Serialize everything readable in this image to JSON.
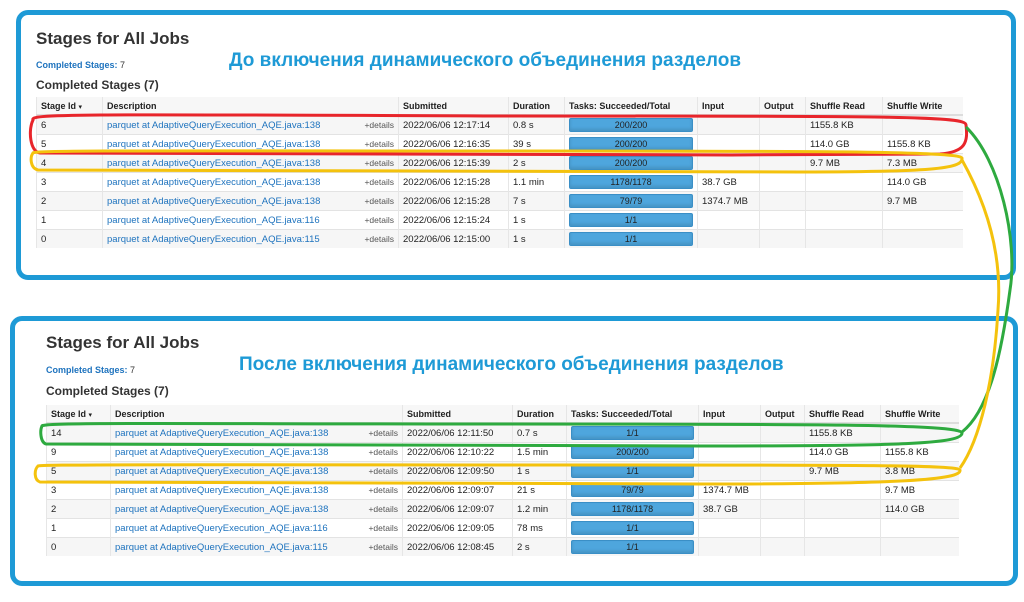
{
  "before": {
    "title": "Stages for All Jobs",
    "completed_link_label": "Completed Stages:",
    "completed_link_count": "7",
    "completed_header": "Completed Stages (7)",
    "caption": "До включения динамического объединения разделов",
    "columns": [
      "Stage Id",
      "Description",
      "Submitted",
      "Duration",
      "Tasks: Succeeded/Total",
      "Input",
      "Output",
      "Shuffle Read",
      "Shuffle Write"
    ],
    "sort_indicator": "▾",
    "rows": [
      {
        "id": "6",
        "desc": "parquet at AdaptiveQueryExecution_AQE.java:138",
        "details": "+details",
        "submitted": "2022/06/06 12:17:14",
        "duration": "0.8 s",
        "tasks": "200/200",
        "input": "",
        "output": "",
        "shuffle_read": "1155.8 KB",
        "shuffle_write": ""
      },
      {
        "id": "5",
        "desc": "parquet at AdaptiveQueryExecution_AQE.java:138",
        "details": "+details",
        "submitted": "2022/06/06 12:16:35",
        "duration": "39 s",
        "tasks": "200/200",
        "input": "",
        "output": "",
        "shuffle_read": "114.0 GB",
        "shuffle_write": "1155.8 KB"
      },
      {
        "id": "4",
        "desc": "parquet at AdaptiveQueryExecution_AQE.java:138",
        "details": "+details",
        "submitted": "2022/06/06 12:15:39",
        "duration": "2 s",
        "tasks": "200/200",
        "input": "",
        "output": "",
        "shuffle_read": "9.7 MB",
        "shuffle_write": "7.3 MB"
      },
      {
        "id": "3",
        "desc": "parquet at AdaptiveQueryExecution_AQE.java:138",
        "details": "+details",
        "submitted": "2022/06/06 12:15:28",
        "duration": "1.1 min",
        "tasks": "1178/1178",
        "input": "38.7 GB",
        "output": "",
        "shuffle_read": "",
        "shuffle_write": "114.0 GB"
      },
      {
        "id": "2",
        "desc": "parquet at AdaptiveQueryExecution_AQE.java:138",
        "details": "+details",
        "submitted": "2022/06/06 12:15:28",
        "duration": "7 s",
        "tasks": "79/79",
        "input": "1374.7 MB",
        "output": "",
        "shuffle_read": "",
        "shuffle_write": "9.7 MB"
      },
      {
        "id": "1",
        "desc": "parquet at AdaptiveQueryExecution_AQE.java:116",
        "details": "+details",
        "submitted": "2022/06/06 12:15:24",
        "duration": "1 s",
        "tasks": "1/1",
        "input": "",
        "output": "",
        "shuffle_read": "",
        "shuffle_write": ""
      },
      {
        "id": "0",
        "desc": "parquet at AdaptiveQueryExecution_AQE.java:115",
        "details": "+details",
        "submitted": "2022/06/06 12:15:00",
        "duration": "1 s",
        "tasks": "1/1",
        "input": "",
        "output": "",
        "shuffle_read": "",
        "shuffle_write": ""
      }
    ]
  },
  "after": {
    "title": "Stages for All Jobs",
    "completed_link_label": "Completed Stages:",
    "completed_link_count": "7",
    "completed_header": "Completed Stages (7)",
    "caption": "После включения динамического объединения разделов",
    "columns": [
      "Stage Id",
      "Description",
      "Submitted",
      "Duration",
      "Tasks: Succeeded/Total",
      "Input",
      "Output",
      "Shuffle Read",
      "Shuffle Write"
    ],
    "sort_indicator": "▾",
    "rows": [
      {
        "id": "14",
        "desc": "parquet at AdaptiveQueryExecution_AQE.java:138",
        "details": "+details",
        "submitted": "2022/06/06 12:11:50",
        "duration": "0.7 s",
        "tasks": "1/1",
        "input": "",
        "output": "",
        "shuffle_read": "1155.8 KB",
        "shuffle_write": ""
      },
      {
        "id": "9",
        "desc": "parquet at AdaptiveQueryExecution_AQE.java:138",
        "details": "+details",
        "submitted": "2022/06/06 12:10:22",
        "duration": "1.5 min",
        "tasks": "200/200",
        "input": "",
        "output": "",
        "shuffle_read": "114.0 GB",
        "shuffle_write": "1155.8 KB"
      },
      {
        "id": "5",
        "desc": "parquet at AdaptiveQueryExecution_AQE.java:138",
        "details": "+details",
        "submitted": "2022/06/06 12:09:50",
        "duration": "1 s",
        "tasks": "1/1",
        "input": "",
        "output": "",
        "shuffle_read": "9.7 MB",
        "shuffle_write": "3.8 MB"
      },
      {
        "id": "3",
        "desc": "parquet at AdaptiveQueryExecution_AQE.java:138",
        "details": "+details",
        "submitted": "2022/06/06 12:09:07",
        "duration": "21 s",
        "tasks": "79/79",
        "input": "1374.7 MB",
        "output": "",
        "shuffle_read": "",
        "shuffle_write": "9.7 MB"
      },
      {
        "id": "2",
        "desc": "parquet at AdaptiveQueryExecution_AQE.java:138",
        "details": "+details",
        "submitted": "2022/06/06 12:09:07",
        "duration": "1.2 min",
        "tasks": "1178/1178",
        "input": "38.7 GB",
        "output": "",
        "shuffle_read": "",
        "shuffle_write": "114.0 GB"
      },
      {
        "id": "1",
        "desc": "parquet at AdaptiveQueryExecution_AQE.java:116",
        "details": "+details",
        "submitted": "2022/06/06 12:09:05",
        "duration": "78 ms",
        "tasks": "1/1",
        "input": "",
        "output": "",
        "shuffle_read": "",
        "shuffle_write": ""
      },
      {
        "id": "0",
        "desc": "parquet at AdaptiveQueryExecution_AQE.java:115",
        "details": "+details",
        "submitted": "2022/06/06 12:08:45",
        "duration": "2 s",
        "tasks": "1/1",
        "input": "",
        "output": "",
        "shuffle_read": "",
        "shuffle_write": ""
      }
    ]
  },
  "colors": {
    "frame": "#1e9ad6",
    "link": "#1e73be",
    "progress": "#4ea6dd",
    "highlight_red": "#e8252b",
    "highlight_yellow": "#f4c20d",
    "highlight_green": "#2eaa3f"
  }
}
